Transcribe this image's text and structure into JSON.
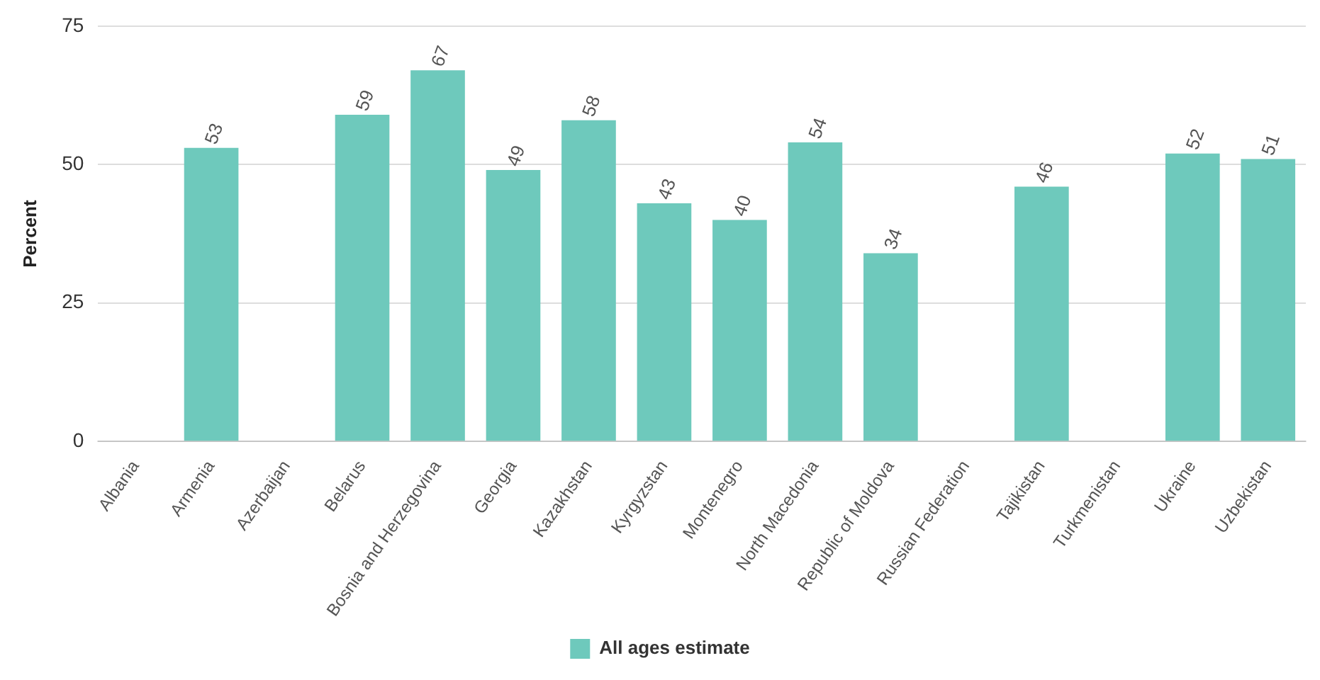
{
  "chart_data": {
    "type": "bar",
    "ylabel": "Percent",
    "categories": [
      "Albania",
      "Armenia",
      "Azerbaijan",
      "Belarus",
      "Bosnia and Herzegovina",
      "Georgia",
      "Kazakhstan",
      "Kyrgyzstan",
      "Montenegro",
      "North Macedonia",
      "Republic of Moldova",
      "Russian Federation",
      "Tajikistan",
      "Turkmenistan",
      "Ukraine",
      "Uzbekistan"
    ],
    "series": [
      {
        "name": "All ages estimate",
        "color": "#6ec9bc",
        "values": [
          null,
          53,
          null,
          59,
          67,
          49,
          58,
          43,
          40,
          54,
          34,
          null,
          46,
          null,
          52,
          51
        ]
      }
    ],
    "ylim": [
      0,
      75
    ],
    "yticks": [
      0,
      25,
      50,
      75
    ],
    "grid": "y",
    "legend": "bottom",
    "data_labels": true
  }
}
